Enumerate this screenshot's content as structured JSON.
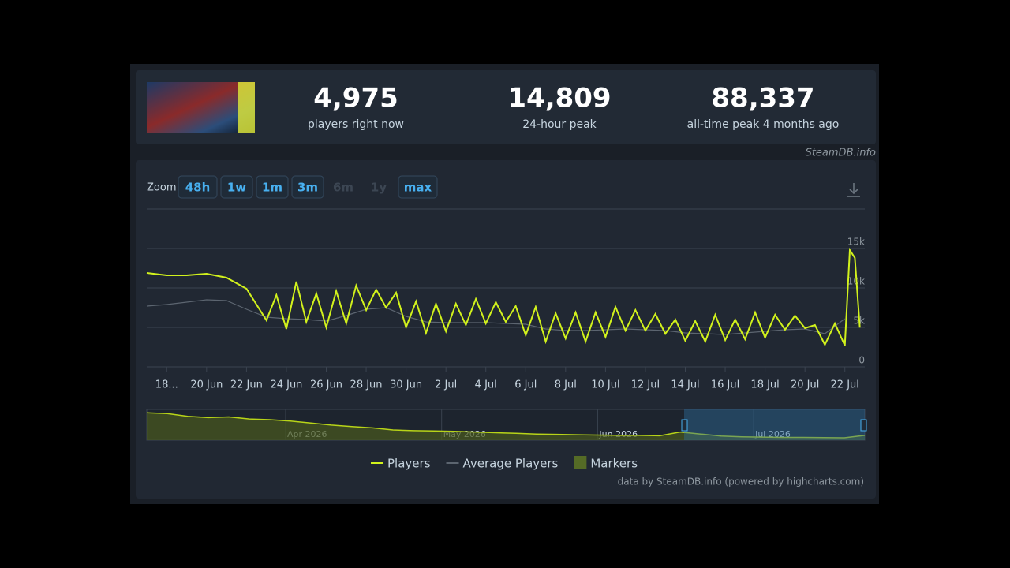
{
  "header": {
    "stats": [
      {
        "value": "4,975",
        "label": "players right now"
      },
      {
        "value": "14,809",
        "label": "24-hour peak"
      },
      {
        "value": "88,337",
        "label": "all-time peak 4 months ago"
      }
    ],
    "watermark": "SteamDB.info"
  },
  "zoom": {
    "label": "Zoom",
    "buttons": [
      {
        "text": "48h",
        "enabled": true
      },
      {
        "text": "1w",
        "enabled": true
      },
      {
        "text": "1m",
        "enabled": true
      },
      {
        "text": "3m",
        "enabled": true
      },
      {
        "text": "6m",
        "enabled": false
      },
      {
        "text": "1y",
        "enabled": false
      },
      {
        "text": "max",
        "enabled": true
      }
    ]
  },
  "chart_data": {
    "type": "line",
    "xlim": [
      "17 Jun",
      "23 Jul"
    ],
    "xticks": [
      {
        "value": "18 Jun",
        "label": "18..."
      },
      "20 Jun",
      "22 Jun",
      "24 Jun",
      "26 Jun",
      "28 Jun",
      "30 Jun",
      "2 Jul",
      "4 Jul",
      "6 Jul",
      "8 Jul",
      "10 Jul",
      "12 Jul",
      "14 Jul",
      "16 Jul",
      "18 Jul",
      "20 Jul",
      "22 Jul"
    ],
    "ylim": [
      0,
      20000
    ],
    "yticks": [
      0,
      {
        "value": 5000,
        "label": "5k"
      },
      {
        "value": 10000,
        "label": "10k"
      },
      {
        "value": 15000,
        "label": "15k"
      }
    ],
    "grid": true,
    "series": [
      {
        "name": "Players",
        "color": "#d2f21c",
        "x": [
          "17 Jun",
          "18 Jun",
          "19 Jun",
          "20 Jun",
          "21 Jun",
          "22 Jun",
          "23 Jun",
          "23 Jun",
          "24 Jun",
          "24 Jun",
          "25 Jun",
          "25 Jun",
          "26 Jun",
          "26 Jun",
          "27 Jun",
          "27 Jun",
          "28 Jun",
          "28 Jun",
          "29 Jun",
          "29 Jun",
          "30 Jun",
          "30 Jun",
          "1 Jul",
          "1 Jul",
          "2 Jul",
          "2 Jul",
          "3 Jul",
          "3 Jul",
          "4 Jul",
          "4 Jul",
          "5 Jul",
          "5 Jul",
          "6 Jul",
          "6 Jul",
          "7 Jul",
          "7 Jul",
          "8 Jul",
          "8 Jul",
          "9 Jul",
          "9 Jul",
          "10 Jul",
          "10 Jul",
          "11 Jul",
          "11 Jul",
          "12 Jul",
          "12 Jul",
          "13 Jul",
          "13 Jul",
          "14 Jul",
          "14 Jul",
          "15 Jul",
          "15 Jul",
          "16 Jul",
          "16 Jul",
          "17 Jul",
          "17 Jul",
          "18 Jul",
          "18 Jul",
          "19 Jul",
          "19 Jul",
          "20 Jul",
          "20 Jul",
          "21 Jul",
          "21 Jul",
          "22 Jul",
          "22 Jul",
          "22 Jul",
          "22 Jul"
        ],
        "values": [
          11900,
          11600,
          11600,
          11800,
          11300,
          9900,
          5900,
          9100,
          4800,
          10800,
          5700,
          9300,
          5000,
          9600,
          5500,
          10300,
          7200,
          9800,
          7500,
          9400,
          5000,
          8300,
          4300,
          8000,
          4500,
          8000,
          5300,
          8600,
          5500,
          8200,
          5700,
          7700,
          4000,
          7600,
          3200,
          6800,
          3600,
          6900,
          3200,
          6900,
          3800,
          7600,
          4600,
          7200,
          4600,
          6700,
          4200,
          6000,
          3300,
          5800,
          3200,
          6600,
          3400,
          6000,
          3500,
          6900,
          3700,
          6600,
          4700,
          6500,
          4900,
          5300,
          2800,
          5500,
          2700,
          14809,
          13800,
          4975
        ]
      },
      {
        "name": "Average Players",
        "color": "#5c6570",
        "x": [
          "17 Jun",
          "18 Jun",
          "19 Jun",
          "20 Jun",
          "21 Jun",
          "22 Jun",
          "23 Jun",
          "24 Jun",
          "25 Jun",
          "26 Jun",
          "27 Jun",
          "28 Jun",
          "29 Jun",
          "30 Jun",
          "1 Jul",
          "2 Jul",
          "3 Jul",
          "4 Jul",
          "5 Jul",
          "6 Jul",
          "7 Jul",
          "8 Jul",
          "9 Jul",
          "10 Jul",
          "11 Jul",
          "12 Jul",
          "13 Jul",
          "14 Jul",
          "15 Jul",
          "16 Jul",
          "17 Jul",
          "18 Jul",
          "19 Jul",
          "20 Jul",
          "21 Jul",
          "22 Jul"
        ],
        "values": [
          7700,
          7900,
          8200,
          8500,
          8400,
          7300,
          6300,
          6100,
          6000,
          5800,
          6500,
          7300,
          7500,
          6400,
          5700,
          5600,
          5600,
          5600,
          5500,
          5400,
          4800,
          4600,
          4600,
          4700,
          4800,
          4700,
          4600,
          4300,
          4200,
          4100,
          4300,
          4500,
          4700,
          4800,
          4200,
          6100
        ]
      }
    ],
    "legend": {
      "markers": "Markers",
      "marker_color": "#556b26"
    },
    "credits": "data by SteamDB.info (powered by highcharts.com)"
  },
  "navigator": {
    "labels": [
      "Apr 2026",
      "May 2026",
      "Jun 2026",
      "Jul 2026"
    ],
    "ylim": [
      0,
      90000
    ],
    "values": [
      80000,
      78000,
      70000,
      66000,
      68000,
      62000,
      60000,
      56000,
      50000,
      44000,
      40000,
      36000,
      30000,
      28000,
      27000,
      26000,
      24000,
      22000,
      20000,
      18000,
      17000,
      16000,
      15000,
      14000,
      14000,
      13000,
      24000,
      18000,
      12000,
      10000,
      9000,
      8000,
      8000,
      7500,
      7000,
      14000
    ]
  }
}
